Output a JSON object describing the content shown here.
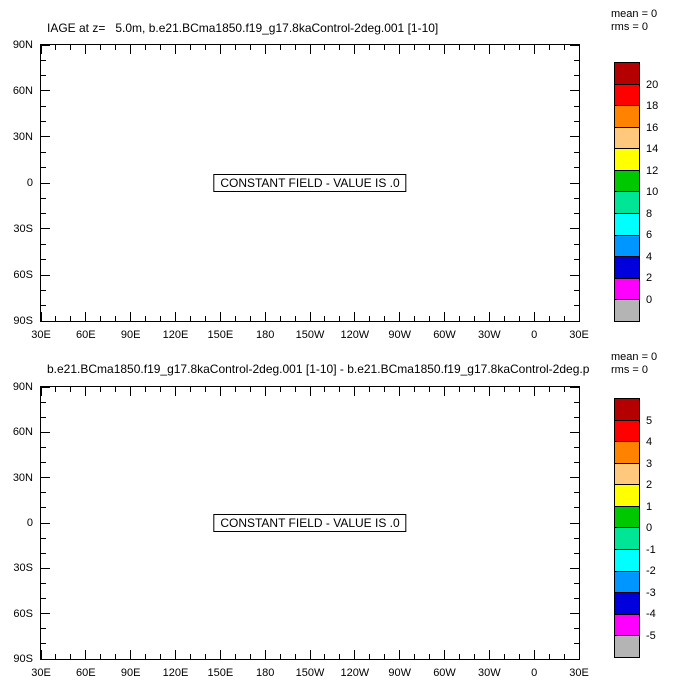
{
  "panels": [
    {
      "title": "IAGE at z=   5.0m, b.e21.BCma1850.f19_g17.8kaControl-2deg.001 [1-10]",
      "stats": {
        "mean": "mean = 0",
        "rms": "rms = 0"
      },
      "field_label": "CONSTANT FIELD - VALUE IS .0",
      "x_labels": [
        "30E",
        "60E",
        "90E",
        "120E",
        "150E",
        "180",
        "150W",
        "120W",
        "90W",
        "60W",
        "30W",
        "0",
        "30E"
      ],
      "y_labels": [
        "90N",
        "60N",
        "30N",
        "0",
        "30S",
        "60S",
        "90S"
      ],
      "colorbar_labels_top_to_bottom": [
        "20",
        "18",
        "16",
        "14",
        "12",
        "10",
        "8",
        "6",
        "4",
        "2",
        "0"
      ]
    },
    {
      "title": "b.e21.BCma1850.f19_g17.8kaControl-2deg.001 [1-10] - b.e21.BCma1850.f19_g17.8kaControl-2deg.p",
      "stats": {
        "mean": "mean = 0",
        "rms": "rms = 0"
      },
      "field_label": "CONSTANT FIELD - VALUE IS .0",
      "x_labels": [
        "30E",
        "60E",
        "90E",
        "120E",
        "150E",
        "180",
        "150W",
        "120W",
        "90W",
        "60W",
        "30W",
        "0",
        "30E"
      ],
      "y_labels": [
        "90N",
        "60N",
        "30N",
        "0",
        "30S",
        "60S",
        "90S"
      ],
      "colorbar_labels_top_to_bottom": [
        "5",
        "4",
        "3",
        "2",
        "1",
        "0",
        "-1",
        "-2",
        "-3",
        "-4",
        "-5"
      ]
    }
  ],
  "colorbar_colors_top_to_bottom": [
    "#b40000",
    "#ff0000",
    "#ff8200",
    "#ffc87d",
    "#ffff00",
    "#00c800",
    "#00e696",
    "#00ffff",
    "#0096ff",
    "#0000dc",
    "#ff00ff",
    "#b4b4b4"
  ],
  "chart_data": [
    {
      "type": "heatmap",
      "title": "IAGE at z=   5.0m, b.e21.BCma1850.f19_g17.8kaControl-2deg.001 [1-10]",
      "annotation": "CONSTANT FIELD - VALUE IS .0",
      "constant_value": 0,
      "mean": 0,
      "rms": 0,
      "x_ticks": [
        "30E",
        "60E",
        "90E",
        "120E",
        "150E",
        "180",
        "150W",
        "120W",
        "90W",
        "60W",
        "30W",
        "0",
        "30E"
      ],
      "y_ticks": [
        "90N",
        "60N",
        "30N",
        "0",
        "30S",
        "60S",
        "90S"
      ],
      "colorbar_levels": [
        0,
        2,
        4,
        6,
        8,
        10,
        12,
        14,
        16,
        18,
        20
      ],
      "grid": false,
      "legend_position": "right"
    },
    {
      "type": "heatmap",
      "title": "b.e21.BCma1850.f19_g17.8kaControl-2deg.001 [1-10] - b.e21.BCma1850.f19_g17.8kaControl-2deg.p",
      "annotation": "CONSTANT FIELD - VALUE IS .0",
      "constant_value": 0,
      "mean": 0,
      "rms": 0,
      "x_ticks": [
        "30E",
        "60E",
        "90E",
        "120E",
        "150E",
        "180",
        "150W",
        "120W",
        "90W",
        "60W",
        "30W",
        "0",
        "30E"
      ],
      "y_ticks": [
        "90N",
        "60N",
        "30N",
        "0",
        "30S",
        "60S",
        "90S"
      ],
      "colorbar_levels": [
        -5,
        -4,
        -3,
        -2,
        -1,
        0,
        1,
        2,
        3,
        4,
        5
      ],
      "grid": false,
      "legend_position": "right"
    }
  ]
}
